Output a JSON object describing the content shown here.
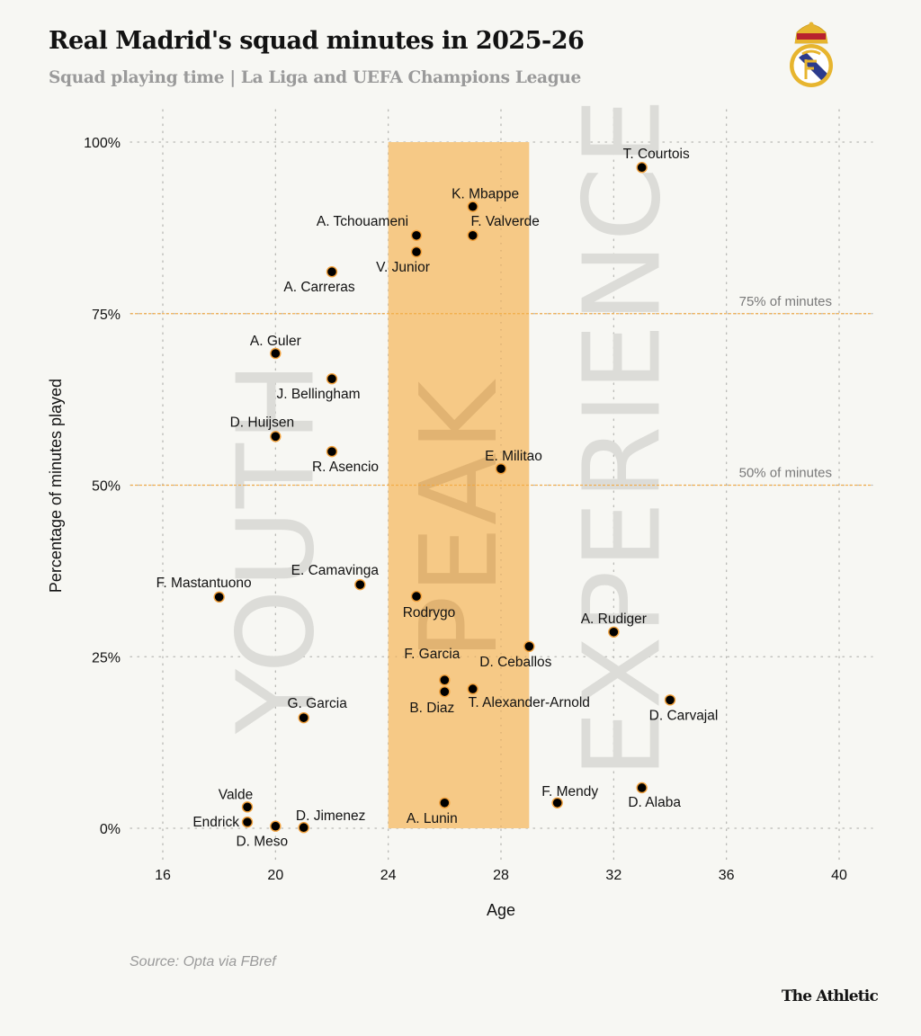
{
  "header": {
    "title": "Real Madrid's squad minutes in 2025-26",
    "subtitle": "Squad playing time | La Liga and UEFA Champions League",
    "crest_icon": "real-madrid-crest-icon"
  },
  "footer": {
    "source": "Source: Opta via FBref",
    "brand": "The Athletic"
  },
  "colors": {
    "background": "#f7f7f3",
    "peak_band": "#f6c986",
    "reference_line": "#f2a941",
    "dot_fill": "#000000",
    "dot_stroke": "#f2a03a",
    "watermark": "#dcdcd8",
    "watermark_peak": "#deb06f"
  },
  "chart_data": {
    "type": "scatter",
    "title": "Real Madrid's squad minutes in 2025-26",
    "subtitle": "Squad playing time | La Liga and UEFA Champions League",
    "xlabel": "Age",
    "ylabel": "Percentage of minutes played",
    "xlim": [
      15,
      41
    ],
    "ylim": [
      -4,
      105
    ],
    "x_ticks": [
      16,
      20,
      24,
      28,
      32,
      36,
      40
    ],
    "x_tick_labels": [
      "16",
      "20",
      "24",
      "28",
      "32",
      "36",
      "40"
    ],
    "y_ticks": [
      0,
      25,
      50,
      75,
      100
    ],
    "y_tick_labels": [
      "0%",
      "25%",
      "50%",
      "75%",
      "100%"
    ],
    "grid": true,
    "reference_lines": [
      {
        "y": 75,
        "label": "75% of minutes"
      },
      {
        "y": 50,
        "label": "50% of minutes"
      }
    ],
    "peak_band": {
      "x_from": 24,
      "x_to": 29,
      "y_from": 0,
      "y_to": 100
    },
    "watermarks": [
      {
        "text": "YOUTH",
        "x": 20,
        "y_center": 41
      },
      {
        "text": "PEAK",
        "x": 26.5,
        "y_center": 45
      },
      {
        "text": "EXPERIENCE",
        "x": 32.3,
        "y_center": 57
      }
    ],
    "points": [
      {
        "name": "T. Courtois",
        "age": 33,
        "pct": 96.3,
        "label_pos": "above"
      },
      {
        "name": "K. Mbappe",
        "age": 27,
        "pct": 90.6,
        "label_pos": "above"
      },
      {
        "name": "A. Tchouameni",
        "age": 25,
        "pct": 86.4,
        "label_pos": "above-left"
      },
      {
        "name": "F. Valverde",
        "age": 27,
        "pct": 86.4,
        "label_pos": "above-right"
      },
      {
        "name": "V. Junior",
        "age": 25,
        "pct": 84.0,
        "label_pos": "below"
      },
      {
        "name": "A. Carreras",
        "age": 22,
        "pct": 81.1,
        "label_pos": "below-left"
      },
      {
        "name": "A. Guler",
        "age": 20,
        "pct": 69.2,
        "label_pos": "above"
      },
      {
        "name": "J. Bellingham",
        "age": 22,
        "pct": 65.5,
        "label_pos": "below"
      },
      {
        "name": "D. Huijsen",
        "age": 20,
        "pct": 57.1,
        "label_pos": "above-left"
      },
      {
        "name": "R. Asencio",
        "age": 22,
        "pct": 54.9,
        "label_pos": "below"
      },
      {
        "name": "E. Militao",
        "age": 28,
        "pct": 52.4,
        "label_pos": "above"
      },
      {
        "name": "F. Mastantuono",
        "age": 18,
        "pct": 33.7,
        "label_pos": "above"
      },
      {
        "name": "E. Camavinga",
        "age": 23,
        "pct": 35.5,
        "label_pos": "above-left"
      },
      {
        "name": "Rodrygo",
        "age": 25,
        "pct": 33.8,
        "label_pos": "below"
      },
      {
        "name": "D. Ceballos",
        "age": 29,
        "pct": 26.5,
        "label_pos": "below-left"
      },
      {
        "name": "A. Rudiger",
        "age": 32,
        "pct": 28.6,
        "label_pos": "above"
      },
      {
        "name": "F. Garcia",
        "age": 26,
        "pct": 21.6,
        "label_pos": "above-left"
      },
      {
        "name": "B. Diaz",
        "age": 26,
        "pct": 19.9,
        "label_pos": "below-left"
      },
      {
        "name": "T. Alexander-Arnold",
        "age": 27,
        "pct": 20.3,
        "label_pos": "below-right"
      },
      {
        "name": "D. Carvajal",
        "age": 34,
        "pct": 18.7,
        "label_pos": "below"
      },
      {
        "name": "G. Garcia",
        "age": 21,
        "pct": 16.1,
        "label_pos": "above"
      },
      {
        "name": "Valde",
        "age": 19,
        "pct": 3.1,
        "label_pos": "above-left"
      },
      {
        "name": "Endrick",
        "age": 19,
        "pct": 0.9,
        "label_pos": "left"
      },
      {
        "name": "D. Meso",
        "age": 20,
        "pct": 0.3,
        "label_pos": "below"
      },
      {
        "name": "D. Jimenez",
        "age": 21,
        "pct": 0.1,
        "label_pos": "above-right"
      },
      {
        "name": "A. Lunin",
        "age": 26,
        "pct": 3.7,
        "label_pos": "below-left"
      },
      {
        "name": "F. Mendy",
        "age": 30,
        "pct": 3.7,
        "label_pos": "above"
      },
      {
        "name": "D. Alaba",
        "age": 33,
        "pct": 5.9,
        "label_pos": "below"
      }
    ]
  }
}
